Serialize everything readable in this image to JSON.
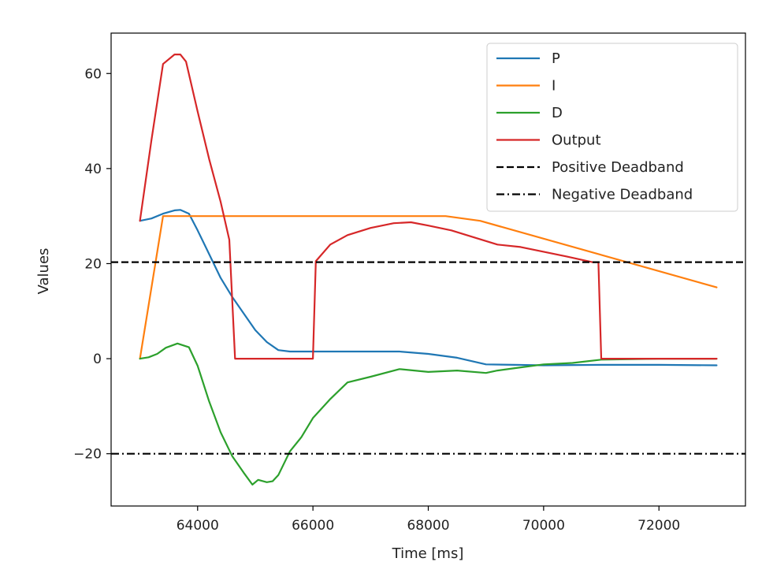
{
  "chart_data": {
    "type": "line",
    "title": "",
    "xlabel": "Time [ms]",
    "ylabel": "Values",
    "xlim": [
      62500,
      73500
    ],
    "ylim": [
      -31,
      68.5
    ],
    "xticks": [
      64000,
      66000,
      68000,
      70000,
      72000
    ],
    "xtick_labels": [
      "64000",
      "66000",
      "68000",
      "70000",
      "72000"
    ],
    "yticks": [
      -20,
      0,
      20,
      40,
      60
    ],
    "ytick_labels": [
      "−20",
      "0",
      "20",
      "40",
      "60"
    ],
    "grid": false,
    "legend_position": "top-right",
    "series": [
      {
        "name": "P",
        "color": "#1f77b4",
        "style": "solid",
        "x": [
          63000,
          63200,
          63400,
          63600,
          63700,
          63850,
          64000,
          64200,
          64400,
          64600,
          64800,
          65000,
          65200,
          65400,
          65600,
          66000,
          66500,
          67000,
          67500,
          68000,
          68500,
          69000,
          69500,
          70000,
          71000,
          72000,
          73000
        ],
        "y": [
          29,
          29.5,
          30.5,
          31.2,
          31.3,
          30.5,
          27,
          22,
          17,
          13,
          9.5,
          6,
          3.5,
          1.8,
          1.5,
          1.5,
          1.5,
          1.5,
          1.5,
          1,
          0.2,
          -1.2,
          -1.3,
          -1.4,
          -1.3,
          -1.3,
          -1.4
        ]
      },
      {
        "name": "I",
        "color": "#ff7f0e",
        "style": "solid",
        "x": [
          63000,
          63400,
          68300,
          68900,
          73000
        ],
        "y": [
          0,
          30,
          30,
          29,
          15
        ]
      },
      {
        "name": "D",
        "color": "#2ca02c",
        "style": "solid",
        "x": [
          63000,
          63150,
          63300,
          63450,
          63650,
          63850,
          64000,
          64200,
          64400,
          64600,
          64800,
          64950,
          65050,
          65200,
          65300,
          65400,
          65600,
          65800,
          66000,
          66300,
          66600,
          67000,
          67500,
          68000,
          68500,
          69000,
          69200,
          69500,
          70000,
          70500,
          71000,
          72000,
          73000
        ],
        "y": [
          0,
          0.3,
          1,
          2.3,
          3.2,
          2.4,
          -1.5,
          -9,
          -15.5,
          -20.5,
          -24,
          -26.5,
          -25.5,
          -26,
          -25.8,
          -24.5,
          -19.5,
          -16.5,
          -12.5,
          -8.5,
          -5,
          -3.8,
          -2.2,
          -2.8,
          -2.5,
          -3,
          -2.5,
          -2,
          -1.2,
          -0.9,
          -0.2,
          0,
          0
        ]
      },
      {
        "name": "Output",
        "color": "#d62728",
        "style": "solid",
        "x": [
          63000,
          63200,
          63400,
          63600,
          63700,
          63800,
          64000,
          64200,
          64400,
          64550,
          64650,
          66000,
          66050,
          66300,
          66600,
          67000,
          67400,
          67700,
          68000,
          68400,
          68800,
          69200,
          69600,
          70000,
          70400,
          70850,
          70950,
          71000,
          73000
        ],
        "y": [
          29,
          46,
          62,
          64,
          64,
          62.5,
          52,
          42,
          33,
          25,
          0,
          0,
          20.5,
          24,
          26,
          27.5,
          28.5,
          28.7,
          28,
          27,
          25.5,
          24,
          23.5,
          22.5,
          21.5,
          20.3,
          20.3,
          0,
          0
        ]
      },
      {
        "name": "Positive Deadband",
        "color": "#000000",
        "style": "dashed",
        "horizontal": true,
        "y": 20.3
      },
      {
        "name": "Negative Deadband",
        "color": "#000000",
        "style": "dashdot",
        "horizontal": true,
        "y": -20
      }
    ]
  }
}
